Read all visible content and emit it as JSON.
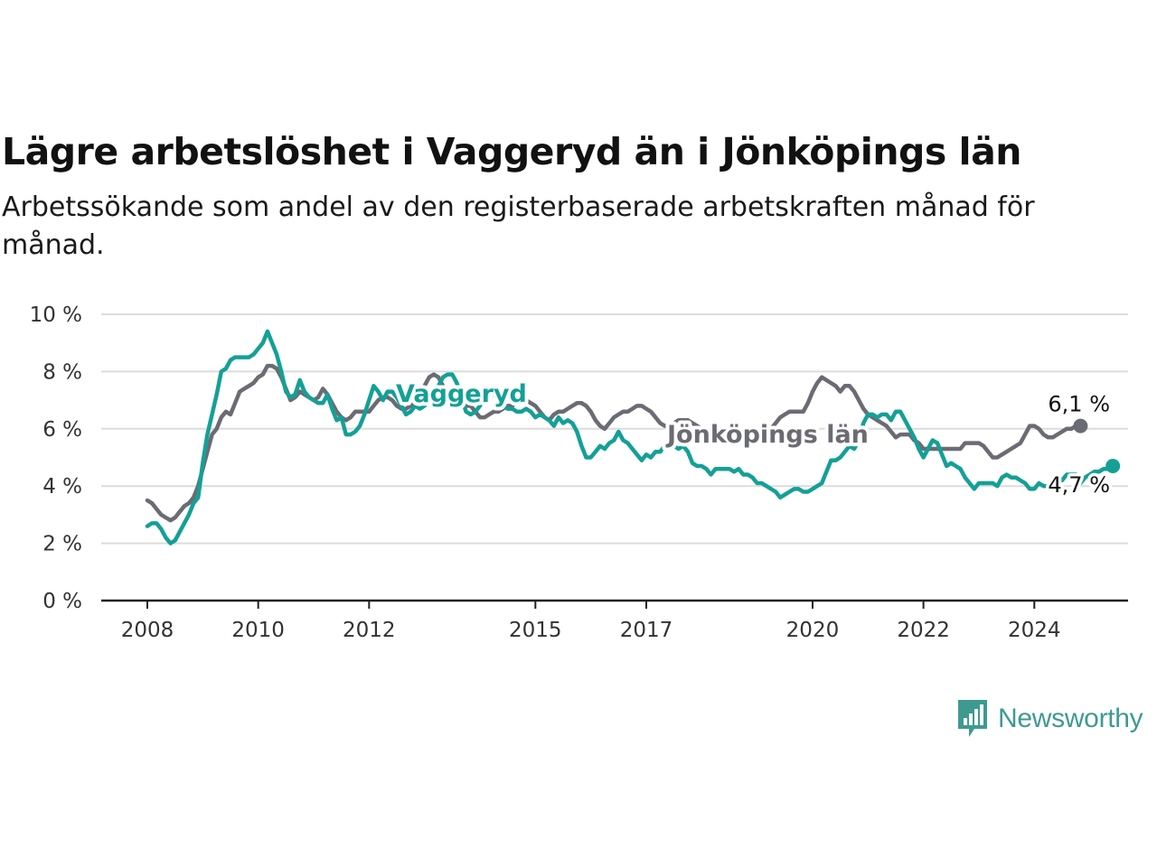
{
  "title": "Lägre arbetslöshet i Vaggeryd än i Jönköpings län",
  "subtitle": "Arbetssökande som andel av den registerbaserade arbetskraften månad för månad.",
  "brand": {
    "name": "Newsworthy",
    "color": "#3e9a91",
    "icon": "bar-chart-speech-bubble-icon"
  },
  "chart_data": {
    "type": "line",
    "x_start": "2008-01",
    "x_frequency": "monthly",
    "x_ticks": [
      "2008",
      "2010",
      "2012",
      "2015",
      "2017",
      "2020",
      "2022",
      "2024"
    ],
    "y_ticks": [
      "0 %",
      "2 %",
      "4 %",
      "6 %",
      "8 %",
      "10 %"
    ],
    "ylim": [
      0,
      10
    ],
    "grid": true,
    "series": [
      {
        "name": "Vaggeryd",
        "color": "#14a096",
        "end_label": "4,7 %",
        "values": [
          2.6,
          2.7,
          2.7,
          2.5,
          2.2,
          2.0,
          2.1,
          2.4,
          2.7,
          3.0,
          3.4,
          3.6,
          4.8,
          5.8,
          6.5,
          7.2,
          8.0,
          8.1,
          8.4,
          8.5,
          8.5,
          8.5,
          8.5,
          8.6,
          8.8,
          9.0,
          9.4,
          9.0,
          8.6,
          8.0,
          7.3,
          7.1,
          7.2,
          7.7,
          7.3,
          7.1,
          7.0,
          6.9,
          6.9,
          7.2,
          6.7,
          6.3,
          6.4,
          5.8,
          5.8,
          5.9,
          6.1,
          6.5,
          7.0,
          7.5,
          7.3,
          7.0,
          7.3,
          7.3,
          7.1,
          6.8,
          6.5,
          6.6,
          6.8,
          6.7,
          6.8,
          7.0,
          7.3,
          7.5,
          7.8,
          7.9,
          7.9,
          7.6,
          7.1,
          6.6,
          6.5,
          6.6,
          6.8,
          7.1,
          7.3,
          7.2,
          7.0,
          6.8,
          6.7,
          6.7,
          6.6,
          6.6,
          6.7,
          6.6,
          6.4,
          6.5,
          6.4,
          6.3,
          6.1,
          6.4,
          6.2,
          6.3,
          6.2,
          5.9,
          5.4,
          5.0,
          5.0,
          5.2,
          5.4,
          5.3,
          5.5,
          5.6,
          5.9,
          5.6,
          5.5,
          5.3,
          5.1,
          4.9,
          5.1,
          5.0,
          5.2,
          5.2,
          5.4,
          5.5,
          5.4,
          5.3,
          5.4,
          5.2,
          4.8,
          4.7,
          4.7,
          4.6,
          4.4,
          4.6,
          4.6,
          4.6,
          4.6,
          4.5,
          4.6,
          4.4,
          4.4,
          4.3,
          4.1,
          4.1,
          4.0,
          3.9,
          3.8,
          3.6,
          3.7,
          3.8,
          3.9,
          3.9,
          3.8,
          3.8,
          3.9,
          4.0,
          4.1,
          4.5,
          4.9,
          4.9,
          5.0,
          5.2,
          5.4,
          5.3,
          5.6,
          6.2,
          6.5,
          6.5,
          6.4,
          6.5,
          6.5,
          6.3,
          6.6,
          6.6,
          6.3,
          6.0,
          5.7,
          5.3,
          5.0,
          5.3,
          5.6,
          5.5,
          5.1,
          4.7,
          4.8,
          4.7,
          4.6,
          4.3,
          4.1,
          3.9,
          4.1,
          4.1,
          4.1,
          4.1,
          4.0,
          4.3,
          4.4,
          4.3,
          4.3,
          4.2,
          4.1,
          3.9,
          3.9,
          4.1,
          4.0,
          4.0,
          4.1,
          4.2,
          4.2,
          4.4,
          4.4,
          4.4,
          4.1,
          4.3,
          4.4,
          4.5,
          4.5,
          4.6,
          4.6,
          4.7
        ]
      },
      {
        "name": "Jönköpings län",
        "color": "#6b6b73",
        "end_label": "6,1 %",
        "values": [
          3.5,
          3.4,
          3.2,
          3.0,
          2.9,
          2.8,
          2.9,
          3.1,
          3.3,
          3.4,
          3.6,
          4.0,
          4.6,
          5.2,
          5.8,
          6.0,
          6.4,
          6.6,
          6.5,
          6.9,
          7.3,
          7.4,
          7.5,
          7.6,
          7.8,
          7.9,
          8.2,
          8.2,
          8.1,
          7.8,
          7.4,
          7.0,
          7.1,
          7.3,
          7.2,
          7.1,
          7.0,
          7.1,
          7.4,
          7.2,
          6.9,
          6.6,
          6.4,
          6.3,
          6.4,
          6.6,
          6.6,
          6.6,
          6.6,
          6.8,
          7.0,
          7.1,
          7.1,
          7.0,
          6.8,
          6.7,
          6.7,
          6.8,
          7.0,
          7.2,
          7.5,
          7.8,
          7.9,
          7.8,
          7.5,
          7.1,
          6.9,
          6.8,
          6.9,
          6.8,
          6.8,
          6.6,
          6.4,
          6.4,
          6.5,
          6.6,
          6.6,
          6.7,
          6.8,
          6.8,
          7.0,
          7.1,
          7.0,
          6.9,
          6.8,
          6.6,
          6.4,
          6.3,
          6.5,
          6.6,
          6.6,
          6.7,
          6.8,
          6.9,
          6.9,
          6.8,
          6.6,
          6.3,
          6.1,
          6.0,
          6.2,
          6.4,
          6.5,
          6.6,
          6.6,
          6.7,
          6.8,
          6.8,
          6.7,
          6.6,
          6.4,
          6.2,
          6.1,
          6.1,
          6.2,
          6.3,
          6.3,
          6.3,
          6.2,
          6.1,
          6.0,
          5.9,
          5.8,
          5.7,
          5.6,
          5.6,
          5.6,
          5.6,
          5.6,
          5.6,
          5.6,
          5.6,
          5.7,
          5.8,
          5.9,
          6.0,
          6.2,
          6.4,
          6.5,
          6.6,
          6.6,
          6.6,
          6.6,
          6.9,
          7.3,
          7.6,
          7.8,
          7.7,
          7.6,
          7.5,
          7.3,
          7.5,
          7.5,
          7.3,
          7.0,
          6.7,
          6.5,
          6.4,
          6.3,
          6.2,
          6.1,
          5.9,
          5.7,
          5.8,
          5.8,
          5.8,
          5.6,
          5.5,
          5.3,
          5.3,
          5.3,
          5.3,
          5.3,
          5.3,
          5.3,
          5.3,
          5.3,
          5.5,
          5.5,
          5.5,
          5.5,
          5.4,
          5.2,
          5.0,
          5.0,
          5.1,
          5.2,
          5.3,
          5.4,
          5.5,
          5.8,
          6.1,
          6.1,
          6.0,
          5.8,
          5.7,
          5.7,
          5.8,
          5.9,
          6.0,
          6.0,
          6.1,
          6.1
        ]
      }
    ]
  }
}
